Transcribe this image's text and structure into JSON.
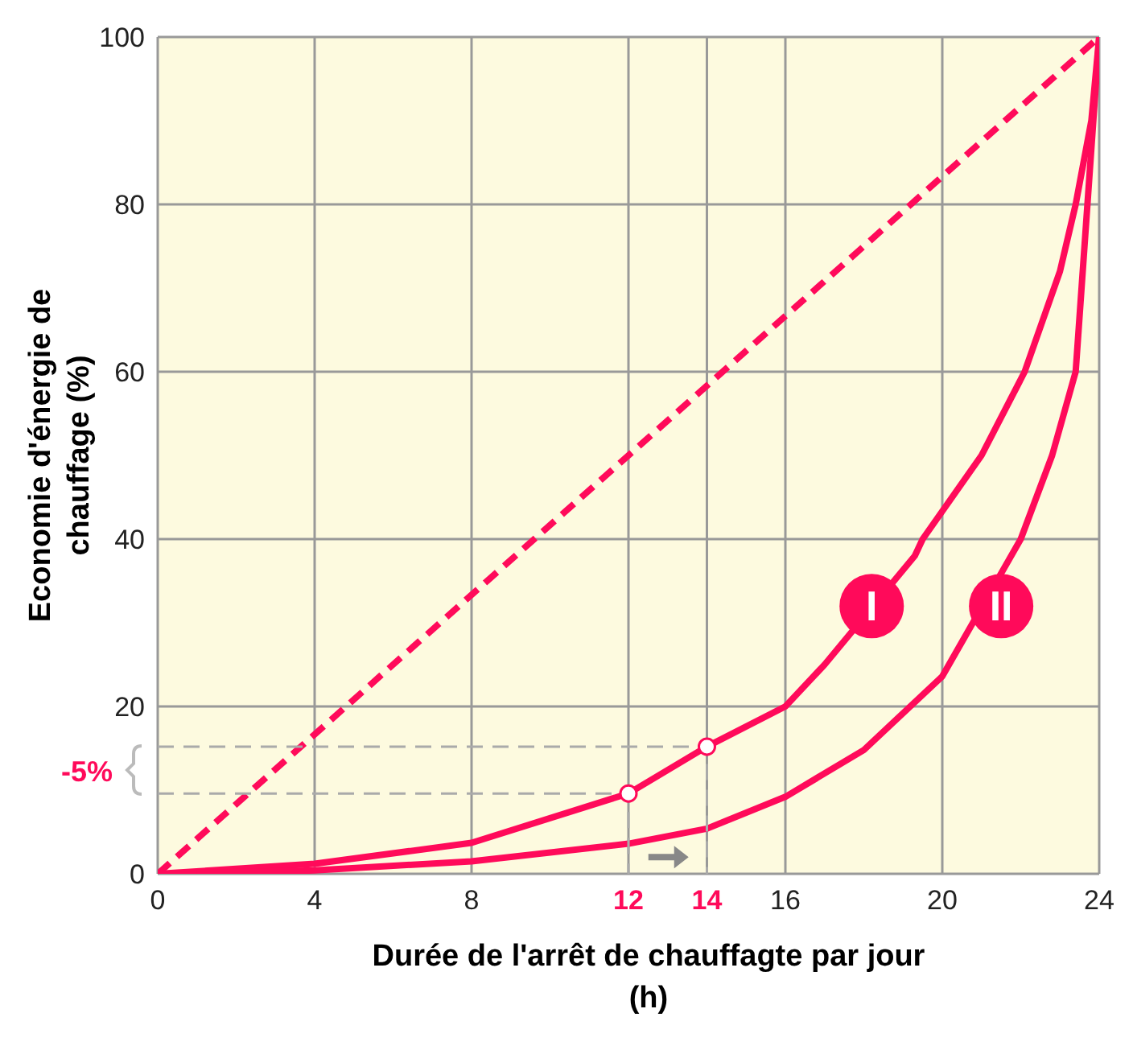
{
  "chart_data": {
    "type": "line",
    "xlabel": "Durée de l'arrêt de chauffagte par jour (h)",
    "ylabel": "Economie d'énergie de chauffage (%)",
    "xlim": [
      0,
      24
    ],
    "ylim": [
      0,
      100
    ],
    "xticks": [
      0,
      4,
      8,
      12,
      14,
      16,
      20,
      24
    ],
    "yticks": [
      0,
      20,
      40,
      60,
      80,
      100
    ],
    "grid": true,
    "marker": "none",
    "series": [
      {
        "color": "#ff0a5a",
        "line_style": "dashed",
        "x": [
          0,
          24
        ],
        "values": [
          0,
          100
        ]
      },
      {
        "color": "#ff0a5a",
        "line_style": "solid",
        "x": [
          0,
          4,
          8,
          12,
          14,
          16,
          17,
          19.3,
          19.5,
          21,
          22.1,
          23,
          23.4,
          23.8,
          24
        ],
        "values": [
          0,
          1.2,
          3.7,
          9.6,
          15.2,
          20,
          25,
          38,
          40,
          50,
          60,
          72,
          80,
          90,
          100
        ]
      },
      {
        "color": "#ff0a5a",
        "line_style": "solid",
        "x": [
          1,
          4,
          8,
          12,
          14,
          16,
          18,
          20,
          22,
          22.8,
          23.4,
          23.7,
          24
        ],
        "values": [
          0.1,
          0.4,
          1.5,
          3.6,
          5.4,
          9.2,
          14.8,
          23.6,
          40,
          50,
          60,
          80,
          100
        ]
      },
      {
        "color": "#aaaaaa",
        "line_style": "dashed",
        "x": [
          0,
          12,
          12
        ],
        "values": [
          9.6,
          9.6,
          0
        ]
      },
      {
        "color": "#aaaaaa",
        "line_style": "dashed",
        "x": [
          0,
          14,
          14
        ],
        "values": [
          15.2,
          15.2,
          0
        ]
      },
      {
        "type": "scatter",
        "color": "#ffffff",
        "marker": "circle",
        "x": [
          12,
          14
        ],
        "values": [
          9.6,
          15.2
        ]
      }
    ],
    "annotations": [
      {
        "text": "I",
        "x": 18.2,
        "y": 32
      },
      {
        "text": "II",
        "x": 21.5,
        "y": 32
      },
      "-5%"
    ]
  }
}
